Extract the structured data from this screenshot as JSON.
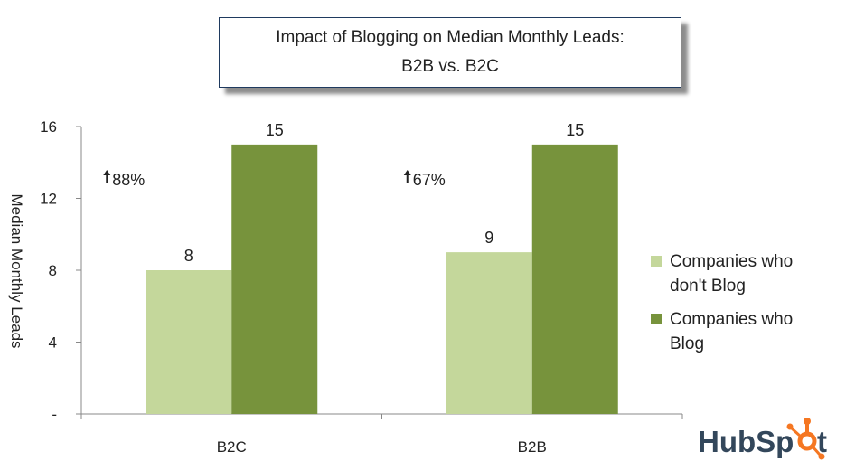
{
  "chart_data": {
    "type": "bar",
    "title": "Impact of Blogging on Median Monthly Leads:",
    "subtitle": "B2B vs. B2C",
    "ylabel": "Median Monthly Leads",
    "xlabel": "",
    "ylim": [
      0,
      16
    ],
    "yticks": [
      {
        "value": 0,
        "label": "-"
      },
      {
        "value": 4,
        "label": "4"
      },
      {
        "value": 8,
        "label": "8"
      },
      {
        "value": 12,
        "label": "12"
      },
      {
        "value": 16,
        "label": "16"
      }
    ],
    "categories": [
      "B2C",
      "B2B"
    ],
    "series": [
      {
        "name": "Companies who don't Blog",
        "values": [
          8,
          9
        ],
        "color": "#c4d79b"
      },
      {
        "name": "Companies who Blog",
        "values": [
          15,
          15
        ],
        "color": "#77933c"
      }
    ],
    "data_labels": [
      [
        "8",
        "9"
      ],
      [
        "15",
        "15"
      ]
    ],
    "annotations": [
      "88%",
      "67%"
    ],
    "grid": false,
    "legend_position": "right"
  },
  "legend": {
    "items": [
      {
        "label": "Companies who don't Blog",
        "color": "#c4d79b"
      },
      {
        "label": "Companies who Blog",
        "color": "#77933c"
      }
    ]
  },
  "logo": {
    "text": "HubSpot",
    "accent_color": "#f57722"
  }
}
